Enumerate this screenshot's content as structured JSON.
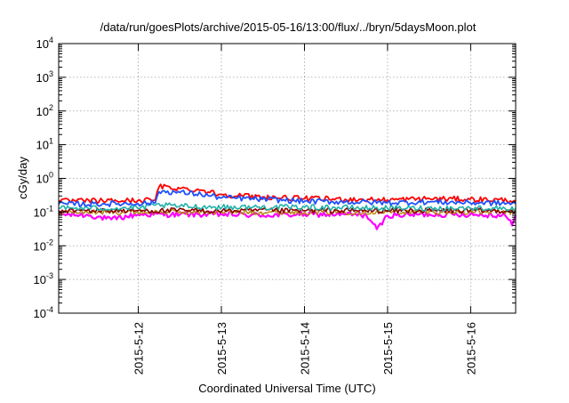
{
  "chart_data": {
    "type": "line",
    "title": "/data/run/goesPlots/archive/2015-05-16/13:00/flux/../bryn/5daysMoon.plot",
    "xlabel": "Coordinated Universal Time (UTC)",
    "ylabel": "cGy/day",
    "y_scale": "log",
    "ylim": [
      0.0001,
      10000
    ],
    "xlim": [
      "2015-05-11T01:00",
      "2015-05-16T13:00"
    ],
    "grid": true,
    "legend": "none",
    "x_ticks": [
      {
        "t": "2015-05-12T00:00",
        "label": "2015-5-12"
      },
      {
        "t": "2015-05-13T00:00",
        "label": "2015-5-13"
      },
      {
        "t": "2015-05-14T00:00",
        "label": "2015-5-14"
      },
      {
        "t": "2015-05-15T00:00",
        "label": "2015-5-15"
      },
      {
        "t": "2015-05-16T00:00",
        "label": "2015-5-16"
      }
    ],
    "y_ticks": [
      {
        "value": 0.0001,
        "base": "10",
        "exp": "-4"
      },
      {
        "value": 0.001,
        "base": "10",
        "exp": "-3"
      },
      {
        "value": 0.01,
        "base": "10",
        "exp": "-2"
      },
      {
        "value": 0.1,
        "base": "10",
        "exp": "-1"
      },
      {
        "value": 1,
        "base": "10",
        "exp": "0"
      },
      {
        "value": 10,
        "base": "10",
        "exp": "1"
      },
      {
        "value": 100,
        "base": "10",
        "exp": "2"
      },
      {
        "value": 1000,
        "base": "10",
        "exp": "3"
      },
      {
        "value": 10000,
        "base": "10",
        "exp": "4"
      }
    ],
    "series": [
      {
        "color": "#ff00ff",
        "width": 2.2,
        "points": [
          [
            "2015-05-11T01:00",
            0.085
          ],
          [
            "2015-05-11T10:00",
            0.08
          ],
          [
            "2015-05-11T16:00",
            0.06
          ],
          [
            "2015-05-12T00:00",
            0.085
          ],
          [
            "2015-05-12T12:00",
            0.085
          ],
          [
            "2015-05-13T00:00",
            0.085
          ],
          [
            "2015-05-13T12:00",
            0.08
          ],
          [
            "2015-05-14T00:00",
            0.085
          ],
          [
            "2015-05-14T12:00",
            0.085
          ],
          [
            "2015-05-14T18:00",
            0.08
          ],
          [
            "2015-05-14T21:00",
            0.03
          ],
          [
            "2015-05-15T00:00",
            0.08
          ],
          [
            "2015-05-15T12:00",
            0.085
          ],
          [
            "2015-05-16T00:00",
            0.085
          ],
          [
            "2015-05-16T10:00",
            0.08
          ],
          [
            "2015-05-16T12:00",
            0.04
          ],
          [
            "2015-05-16T13:00",
            0.08
          ]
        ]
      },
      {
        "color": "#b8860b",
        "width": 1.4,
        "points": [
          [
            "2015-05-11T01:00",
            0.1
          ],
          [
            "2015-05-12T00:00",
            0.1
          ],
          [
            "2015-05-13T00:00",
            0.1
          ],
          [
            "2015-05-14T00:00",
            0.1
          ],
          [
            "2015-05-15T00:00",
            0.1
          ],
          [
            "2015-05-16T00:00",
            0.1
          ],
          [
            "2015-05-16T13:00",
            0.1
          ]
        ]
      },
      {
        "color": "#8b0000",
        "width": 1.6,
        "points": [
          [
            "2015-05-11T01:00",
            0.11
          ],
          [
            "2015-05-12T00:00",
            0.11
          ],
          [
            "2015-05-13T00:00",
            0.11
          ],
          [
            "2015-05-14T00:00",
            0.11
          ],
          [
            "2015-05-15T00:00",
            0.11
          ],
          [
            "2015-05-16T00:00",
            0.11
          ],
          [
            "2015-05-16T13:00",
            0.11
          ]
        ]
      },
      {
        "color": "#20b2aa",
        "width": 1.6,
        "points": [
          [
            "2015-05-11T01:00",
            0.13
          ],
          [
            "2015-05-12T00:00",
            0.13
          ],
          [
            "2015-05-12T05:00",
            0.16
          ],
          [
            "2015-05-12T12:00",
            0.15
          ],
          [
            "2015-05-13T00:00",
            0.14
          ],
          [
            "2015-05-14T00:00",
            0.14
          ],
          [
            "2015-05-15T00:00",
            0.13
          ],
          [
            "2015-05-16T00:00",
            0.13
          ],
          [
            "2015-05-16T13:00",
            0.13
          ]
        ]
      },
      {
        "color": "#ff0000",
        "width": 1.8,
        "points": [
          [
            "2015-05-11T01:00",
            0.21
          ],
          [
            "2015-05-12T00:00",
            0.22
          ],
          [
            "2015-05-12T05:00",
            0.23
          ],
          [
            "2015-05-12T06:00",
            0.58
          ],
          [
            "2015-05-12T12:00",
            0.5
          ],
          [
            "2015-05-12T18:00",
            0.45
          ],
          [
            "2015-05-13T00:00",
            0.33
          ],
          [
            "2015-05-13T12:00",
            0.28
          ],
          [
            "2015-05-14T00:00",
            0.25
          ],
          [
            "2015-05-14T12:00",
            0.24
          ],
          [
            "2015-05-15T00:00",
            0.23
          ],
          [
            "2015-05-15T12:00",
            0.25
          ],
          [
            "2015-05-16T00:00",
            0.24
          ],
          [
            "2015-05-16T13:00",
            0.22
          ]
        ]
      },
      {
        "color": "#1e50ff",
        "width": 1.8,
        "points": [
          [
            "2015-05-11T01:00",
            0.17
          ],
          [
            "2015-05-12T00:00",
            0.18
          ],
          [
            "2015-05-12T05:00",
            0.19
          ],
          [
            "2015-05-12T06:00",
            0.42
          ],
          [
            "2015-05-12T12:00",
            0.38
          ],
          [
            "2015-05-12T18:00",
            0.34
          ],
          [
            "2015-05-13T00:00",
            0.27
          ],
          [
            "2015-05-13T12:00",
            0.24
          ],
          [
            "2015-05-14T00:00",
            0.21
          ],
          [
            "2015-05-14T12:00",
            0.2
          ],
          [
            "2015-05-15T00:00",
            0.19
          ],
          [
            "2015-05-15T12:00",
            0.2
          ],
          [
            "2015-05-16T00:00",
            0.19
          ],
          [
            "2015-05-16T13:00",
            0.18
          ]
        ]
      }
    ]
  }
}
